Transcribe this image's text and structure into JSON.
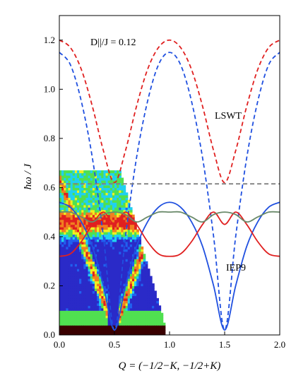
{
  "chart_data": {
    "type": "line",
    "title": "",
    "xlabel": "Q = (−1/2−K, −1/2+K)",
    "ylabel": "ħω / J",
    "xlim": [
      0.0,
      2.0
    ],
    "ylim": [
      0.0,
      1.3
    ],
    "x_ticks": [
      "0.0",
      "0.5",
      "1.0",
      "1.5",
      "2.0"
    ],
    "y_ticks": [
      "0.0",
      "0.2",
      "0.4",
      "0.6",
      "0.8",
      "1.0",
      "1.2"
    ],
    "grid": false,
    "annotations": {
      "parameter": "D||/J = 0.12",
      "lswt": "LSWT",
      "iep9": "IEP9"
    },
    "series": [
      {
        "style": "dashed",
        "color": "#e02020",
        "x": [
          0.0,
          0.1,
          0.2,
          0.3,
          0.4,
          0.5,
          0.6,
          0.7,
          0.8,
          0.9,
          1.0,
          1.1,
          1.2,
          1.3,
          1.4,
          1.5,
          1.6,
          1.7,
          1.8,
          1.9,
          2.0
        ],
        "y": [
          1.2,
          1.17,
          1.08,
          0.93,
          0.75,
          0.62,
          0.75,
          0.93,
          1.08,
          1.17,
          1.2,
          1.17,
          1.08,
          0.93,
          0.75,
          0.62,
          0.75,
          0.93,
          1.08,
          1.17,
          1.2
        ]
      },
      {
        "style": "dashed",
        "color": "#2050e0",
        "x": [
          0.0,
          0.1,
          0.2,
          0.3,
          0.4,
          0.5,
          0.6,
          0.7,
          0.8,
          0.9,
          1.0,
          1.1,
          1.2,
          1.3,
          1.4,
          1.5,
          1.6,
          1.7,
          1.8,
          1.9,
          2.0
        ],
        "y": [
          1.15,
          1.1,
          0.95,
          0.72,
          0.4,
          0.02,
          0.4,
          0.72,
          0.95,
          1.1,
          1.15,
          1.1,
          0.95,
          0.72,
          0.4,
          0.02,
          0.4,
          0.72,
          0.95,
          1.1,
          1.15
        ]
      },
      {
        "style": "dashed",
        "color": "#808080",
        "x": [
          0.0,
          2.0
        ],
        "y": [
          0.615,
          0.615
        ]
      },
      {
        "style": "solid",
        "color": "#2050e0",
        "x": [
          0.0,
          0.1,
          0.2,
          0.3,
          0.4,
          0.5,
          0.6,
          0.7,
          0.8,
          0.9,
          1.0,
          1.1,
          1.2,
          1.3,
          1.4,
          1.5,
          1.6,
          1.7,
          1.8,
          1.9,
          2.0
        ],
        "y": [
          0.54,
          0.52,
          0.46,
          0.36,
          0.2,
          0.02,
          0.2,
          0.36,
          0.46,
          0.52,
          0.54,
          0.52,
          0.46,
          0.36,
          0.2,
          0.02,
          0.2,
          0.36,
          0.46,
          0.52,
          0.54
        ]
      },
      {
        "style": "solid",
        "color": "#e02020",
        "x": [
          0.0,
          0.1,
          0.2,
          0.3,
          0.4,
          0.5,
          0.6,
          0.7,
          0.8,
          0.9,
          1.0,
          1.1,
          1.2,
          1.3,
          1.4,
          1.5,
          1.6,
          1.7,
          1.8,
          1.9,
          2.0
        ],
        "y": [
          0.32,
          0.33,
          0.38,
          0.45,
          0.5,
          0.45,
          0.5,
          0.45,
          0.38,
          0.33,
          0.32,
          0.33,
          0.38,
          0.45,
          0.5,
          0.45,
          0.5,
          0.45,
          0.38,
          0.33,
          0.32
        ]
      },
      {
        "style": "solid",
        "color": "#6a8a6a",
        "x": [
          0.0,
          0.1,
          0.2,
          0.3,
          0.4,
          0.5,
          0.6,
          0.7,
          0.8,
          0.9,
          1.0,
          1.1,
          1.2,
          1.3,
          1.4,
          1.5,
          1.6,
          1.7,
          1.8,
          1.9,
          2.0
        ],
        "y": [
          0.5,
          0.5,
          0.48,
          0.46,
          0.49,
          0.5,
          0.49,
          0.46,
          0.48,
          0.5,
          0.5,
          0.5,
          0.48,
          0.46,
          0.49,
          0.5,
          0.49,
          0.46,
          0.48,
          0.5,
          0.5
        ]
      }
    ],
    "intensity_map": {
      "x_range": [
        0.0,
        0.95
      ],
      "y_range": [
        0.0,
        0.67
      ],
      "colormap": [
        "#3a0000",
        "#2a2ac8",
        "#2060f0",
        "#20d0f0",
        "#50e050",
        "#f0f020",
        "#f08020",
        "#e02020"
      ]
    }
  }
}
